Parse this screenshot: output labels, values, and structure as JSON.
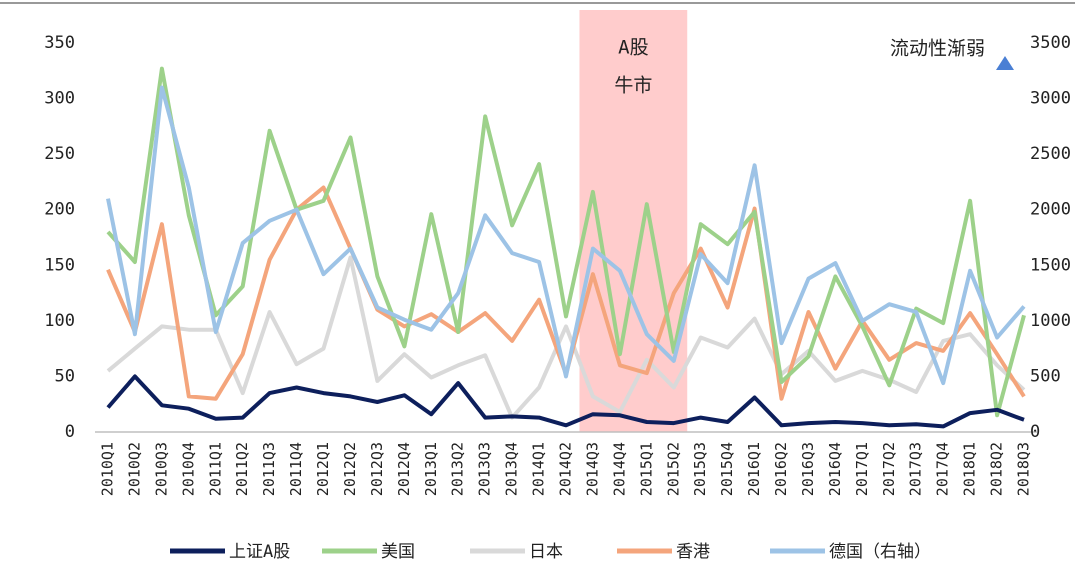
{
  "chart_data": {
    "type": "line",
    "categories": [
      "2010Q1",
      "2010Q2",
      "2010Q3",
      "2010Q4",
      "2011Q1",
      "2011Q2",
      "2011Q3",
      "2011Q4",
      "2012Q1",
      "2012Q2",
      "2012Q3",
      "2012Q4",
      "2013Q1",
      "2013Q2",
      "2013Q3",
      "2013Q4",
      "2014Q1",
      "2014Q2",
      "2014Q3",
      "2014Q4",
      "2015Q1",
      "2015Q2",
      "2015Q3",
      "2015Q4",
      "2016Q1",
      "2016Q2",
      "2016Q3",
      "2016Q4",
      "2017Q1",
      "2017Q2",
      "2017Q3",
      "2017Q4",
      "2018Q1",
      "2018Q2",
      "2018Q3"
    ],
    "series": [
      {
        "name": "上证A股",
        "color": "#0d1f5c",
        "values": [
          22,
          50,
          24,
          21,
          12,
          13,
          35,
          40,
          35,
          32,
          27,
          33,
          16,
          44,
          13,
          14,
          13,
          6,
          16,
          15,
          9,
          8,
          13,
          9,
          31,
          6,
          8,
          9,
          8,
          6,
          7,
          5,
          17,
          20,
          11
        ]
      },
      {
        "name": "美国",
        "color": "#9dd18a",
        "values": [
          180,
          153,
          327,
          195,
          105,
          131,
          271,
          200,
          208,
          265,
          140,
          77,
          196,
          90,
          284,
          186,
          241,
          104,
          216,
          70,
          205,
          72,
          187,
          169,
          198,
          45,
          68,
          140,
          95,
          42,
          111,
          98,
          208,
          15,
          105
        ]
      },
      {
        "name": "日本",
        "color": "#d9d9d9",
        "values": [
          55,
          75,
          95,
          92,
          92,
          35,
          108,
          61,
          75,
          157,
          46,
          70,
          49,
          60,
          69,
          13,
          40,
          95,
          32,
          18,
          65,
          40,
          85,
          76,
          102,
          52,
          73,
          46,
          55,
          47,
          36,
          82,
          88,
          60,
          38
        ]
      },
      {
        "name": "香港",
        "color": "#f4a57c",
        "values": [
          146,
          90,
          187,
          32,
          30,
          70,
          155,
          200,
          220,
          165,
          110,
          95,
          106,
          90,
          107,
          82,
          119,
          52,
          142,
          60,
          53,
          125,
          165,
          112,
          201,
          30,
          108,
          57,
          100,
          65,
          80,
          73,
          107,
          70,
          32
        ]
      },
      {
        "name": "德国（右轴）",
        "color": "#9dc3e6",
        "axis": "y2",
        "values": [
          2100,
          880,
          3100,
          2200,
          900,
          1700,
          1900,
          2000,
          1420,
          1650,
          1120,
          1010,
          920,
          1250,
          1950,
          1610,
          1530,
          500,
          1650,
          1450,
          880,
          640,
          1600,
          1340,
          2400,
          800,
          1380,
          1520,
          1000,
          1150,
          1080,
          440,
          1450,
          850,
          1130
        ]
      }
    ],
    "ylim": [
      0,
      350
    ],
    "yticks": [
      0,
      50,
      100,
      150,
      200,
      250,
      300,
      350
    ],
    "y2lim": [
      0,
      3500
    ],
    "y2ticks": [
      0,
      500,
      1000,
      1500,
      2000,
      2500,
      3000,
      3500
    ],
    "shaded_range": [
      "2014Q3",
      "2015Q2"
    ],
    "shade_color": "#ffcccc",
    "shade_label": [
      "A股",
      "牛市"
    ],
    "arrow_label": "流动性渐弱",
    "legend": "bottom"
  }
}
